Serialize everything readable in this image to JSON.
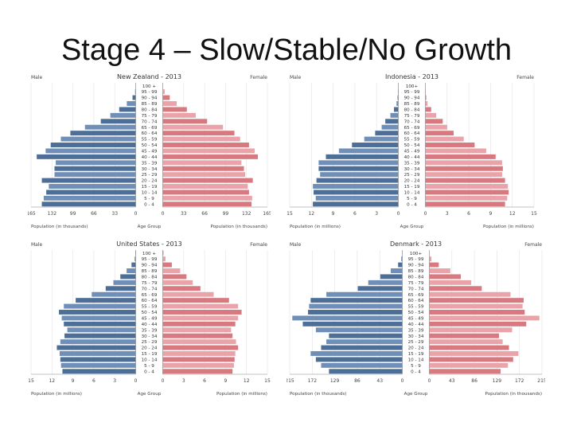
{
  "slide": {
    "title": "Stage 4 – Slow/Stable/No Growth"
  },
  "chart_data": [
    {
      "type": "bar",
      "orientation": "population-pyramid",
      "title": "New Zealand - 2013",
      "male_label": "Male",
      "female_label": "Female",
      "center_label": "Age Group",
      "left_axis_label": "Population (in thousands)",
      "right_axis_label": "Population (in thousands)",
      "xmax": 165,
      "ticks": [
        "165",
        "132",
        "99",
        "66",
        "33",
        "0",
        "0",
        "33",
        "66",
        "99",
        "132",
        "165"
      ],
      "categories": [
        "100 +",
        "95 - 99",
        "90 - 94",
        "85 - 89",
        "80 - 84",
        "75 - 79",
        "70 - 74",
        "65 - 69",
        "60 - 64",
        "55 - 59",
        "50 - 54",
        "45 - 49",
        "40 - 44",
        "35 - 39",
        "30 - 34",
        "25 - 29",
        "20 - 24",
        "15 - 19",
        "10 - 14",
        "5 - 9",
        "0 - 4"
      ],
      "series": [
        {
          "name": "Male",
          "values": [
            0,
            1,
            5,
            14,
            26,
            40,
            55,
            80,
            103,
            118,
            134,
            142,
            156,
            126,
            128,
            128,
            148,
            137,
            141,
            145,
            148
          ]
        },
        {
          "name": "Female",
          "values": [
            0,
            3,
            11,
            22,
            38,
            52,
            70,
            95,
            113,
            122,
            136,
            145,
            150,
            124,
            128,
            130,
            142,
            134,
            136,
            141,
            140
          ]
        }
      ]
    },
    {
      "type": "bar",
      "orientation": "population-pyramid",
      "title": "Indonesia - 2013",
      "male_label": "Male",
      "female_label": "Female",
      "center_label": "Age Group",
      "left_axis_label": "Population (in millions)",
      "right_axis_label": "Population (in millions)",
      "xmax": 15,
      "ticks": [
        "15",
        "12",
        "9",
        "6",
        "3",
        "0",
        "0",
        "3",
        "6",
        "9",
        "12",
        "15"
      ],
      "categories": [
        "100+",
        "95 - 99",
        "90 - 94",
        "85 - 89",
        "80 - 84",
        "75 - 79",
        "70 - 74",
        "65 - 69",
        "60 - 64",
        "55 - 59",
        "50 - 54",
        "45 - 49",
        "40 - 44",
        "35 - 39",
        "30 - 34",
        "25 - 29",
        "20 - 24",
        "15 - 19",
        "10 - 14",
        "5 - 9",
        "0 - 4"
      ],
      "series": [
        {
          "name": "Male",
          "values": [
            0,
            0.05,
            0.1,
            0.25,
            0.6,
            1.1,
            1.8,
            2.3,
            3.2,
            4.7,
            6.4,
            8.2,
            10.0,
            11.0,
            11.0,
            10.8,
            11.3,
            11.8,
            11.7,
            11.4,
            11.8
          ]
        },
        {
          "name": "Female",
          "values": [
            0,
            0.05,
            0.12,
            0.3,
            0.8,
            1.5,
            2.4,
            3.0,
            3.9,
            5.3,
            6.8,
            8.4,
            9.7,
            10.6,
            10.7,
            10.6,
            11.0,
            11.4,
            11.5,
            11.3,
            11.0
          ]
        }
      ]
    },
    {
      "type": "bar",
      "orientation": "population-pyramid",
      "title": "United States - 2013",
      "male_label": "Male",
      "female_label": "Female",
      "center_label": "Age Group",
      "left_axis_label": "Population (in millions)",
      "right_axis_label": "Population (in millions)",
      "xmax": 15,
      "ticks": [
        "15",
        "12",
        "9",
        "6",
        "3",
        "0",
        "0",
        "3",
        "6",
        "9",
        "12",
        "15"
      ],
      "categories": [
        "100 +",
        "95 - 99",
        "90 - 94",
        "85 - 89",
        "80 - 84",
        "75 - 79",
        "70 - 74",
        "65 - 69",
        "60 - 64",
        "55 - 59",
        "50 - 54",
        "45 - 49",
        "40 - 44",
        "35 - 39",
        "30 - 34",
        "25 - 29",
        "20 - 24",
        "15 - 19",
        "10 - 14",
        "5 - 9",
        "0 - 4"
      ],
      "series": [
        {
          "name": "Male",
          "values": [
            0.05,
            0.15,
            0.6,
            1.3,
            2.2,
            3.2,
            4.3,
            6.3,
            8.6,
            10.3,
            11.0,
            10.6,
            10.3,
            9.8,
            10.2,
            10.8,
            11.3,
            10.9,
            10.8,
            10.7,
            10.5
          ]
        },
        {
          "name": "Female",
          "values": [
            0.1,
            0.4,
            1.3,
            2.5,
            3.4,
            4.3,
            5.4,
            7.3,
            9.5,
            10.8,
            11.3,
            10.8,
            10.4,
            9.8,
            10.0,
            10.5,
            10.8,
            10.4,
            10.3,
            10.2,
            10.0
          ]
        }
      ]
    },
    {
      "type": "bar",
      "orientation": "population-pyramid",
      "title": "Denmark - 2013",
      "male_label": "Male",
      "female_label": "Female",
      "center_label": "Age Group",
      "left_axis_label": "Population (in thousands)",
      "right_axis_label": "Population (in thousands)",
      "xmax": 215,
      "ticks": [
        "215",
        "172",
        "129",
        "86",
        "43",
        "0",
        "0",
        "43",
        "86",
        "129",
        "172",
        "215"
      ],
      "categories": [
        "100+",
        "95 - 99",
        "90 - 94",
        "85 - 89",
        "80 - 84",
        "75 - 79",
        "70 - 74",
        "65 - 69",
        "60 - 64",
        "55 - 59",
        "50 - 54",
        "45 - 49",
        "40 - 44",
        "35 - 39",
        "30 - 34",
        "25 - 29",
        "20 - 24",
        "15 - 19",
        "10 - 14",
        "5 - 9",
        "0 - 4"
      ],
      "series": [
        {
          "name": "Male",
          "values": [
            0,
            2,
            8,
            22,
            42,
            65,
            85,
            145,
            175,
            178,
            180,
            210,
            190,
            165,
            140,
            145,
            155,
            175,
            165,
            155,
            140
          ]
        },
        {
          "name": "Female",
          "values": [
            0,
            4,
            18,
            40,
            60,
            80,
            100,
            155,
            180,
            178,
            182,
            210,
            185,
            158,
            133,
            140,
            152,
            170,
            160,
            150,
            136
          ]
        }
      ]
    }
  ]
}
